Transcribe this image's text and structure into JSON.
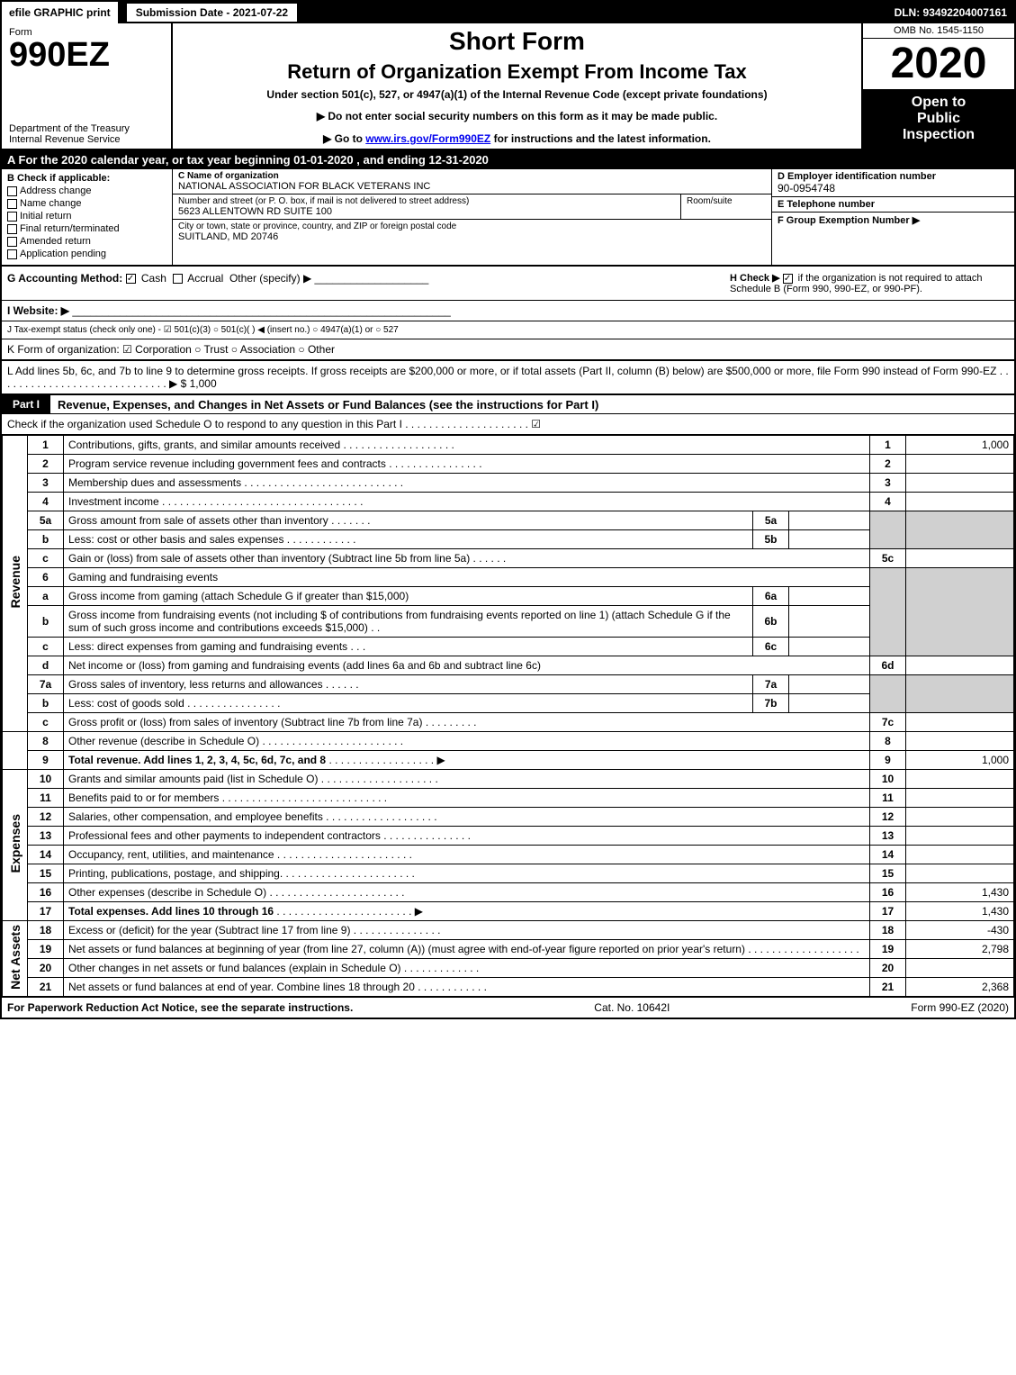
{
  "top_bar": {
    "efile": "efile GRAPHIC print",
    "submission": "Submission Date - 2021-07-22",
    "dln": "DLN: 93492204007161"
  },
  "header": {
    "form_label": "Form",
    "form_number": "990EZ",
    "dept1": "Department of the Treasury",
    "dept2": "Internal Revenue Service",
    "short_form": "Short Form",
    "return_title": "Return of Organization Exempt From Income Tax",
    "under_section": "Under section 501(c), 527, or 4947(a)(1) of the Internal Revenue Code (except private foundations)",
    "instr1": "▶ Do not enter social security numbers on this form as it may be made public.",
    "instr2_pre": "▶ Go to ",
    "instr2_link": "www.irs.gov/Form990EZ",
    "instr2_post": " for instructions and the latest information.",
    "omb": "OMB No. 1545-1150",
    "year": "2020",
    "open1": "Open to",
    "open2": "Public",
    "open3": "Inspection"
  },
  "tax_year_bar": "A   For the 2020 calendar year, or tax year beginning 01-01-2020 , and ending 12-31-2020",
  "section_b": {
    "title": "B Check if applicable:",
    "opts": [
      "Address change",
      "Name change",
      "Initial return",
      "Final return/terminated",
      "Amended return",
      "Application pending"
    ]
  },
  "org": {
    "c_label": "C Name of organization",
    "name": "NATIONAL ASSOCIATION FOR BLACK VETERANS INC",
    "addr_label": "Number and street (or P. O. box, if mail is not delivered to street address)",
    "addr": "5623 ALLENTOWN RD SUITE 100",
    "room_label": "Room/suite",
    "city_label": "City or town, state or province, country, and ZIP or foreign postal code",
    "city": "SUITLAND, MD  20746"
  },
  "right_info": {
    "d_label": "D Employer identification number",
    "ein": "90-0954748",
    "e_label": "E Telephone number",
    "phone": "",
    "f_label": "F Group Exemption Number  ▶"
  },
  "section_g": {
    "g_label": "G Accounting Method:",
    "g_cash": "Cash",
    "g_accrual": "Accrual",
    "g_other": "Other (specify) ▶",
    "h_label": "H Check ▶",
    "h_text": "if the organization is not required to attach Schedule B (Form 990, 990-EZ, or 990-PF)."
  },
  "website": "I Website: ▶",
  "tax_status": "J Tax-exempt status (check only one) - ☑ 501(c)(3)  ○ 501(c)(  ) ◀ (insert no.)  ○ 4947(a)(1) or  ○ 527",
  "k_row": "K Form of organization:  ☑ Corporation  ○ Trust  ○ Association  ○ Other",
  "l_row": "L Add lines 5b, 6c, and 7b to line 9 to determine gross receipts. If gross receipts are $200,000 or more, or if total assets (Part II, column (B) below) are $500,000 or more, file Form 990 instead of Form 990-EZ . . . . . . . . . . . . . . . . . . . . . . . . . . . . . ▶ $ 1,000",
  "part1": {
    "label": "Part I",
    "title": "Revenue, Expenses, and Changes in Net Assets or Fund Balances (see the instructions for Part I)",
    "check": "Check if the organization used Schedule O to respond to any question in this Part I . . . . . . . . . . . . . . . . . . . . . ☑"
  },
  "sections": {
    "revenue": "Revenue",
    "expenses": "Expenses",
    "netassets": "Net Assets"
  },
  "rows": {
    "1": {
      "n": "1",
      "d": "Contributions, gifts, grants, and similar amounts received",
      "rn": "1",
      "rv": "1,000"
    },
    "2": {
      "n": "2",
      "d": "Program service revenue including government fees and contracts",
      "rn": "2",
      "rv": ""
    },
    "3": {
      "n": "3",
      "d": "Membership dues and assessments",
      "rn": "3",
      "rv": ""
    },
    "4": {
      "n": "4",
      "d": "Investment income",
      "rn": "4",
      "rv": ""
    },
    "5a": {
      "n": "5a",
      "d": "Gross amount from sale of assets other than inventory",
      "mn": "5a",
      "mv": ""
    },
    "5b": {
      "n": "b",
      "d": "Less: cost or other basis and sales expenses",
      "mn": "5b",
      "mv": ""
    },
    "5c": {
      "n": "c",
      "d": "Gain or (loss) from sale of assets other than inventory (Subtract line 5b from line 5a)",
      "rn": "5c",
      "rv": ""
    },
    "6": {
      "n": "6",
      "d": "Gaming and fundraising events"
    },
    "6a": {
      "n": "a",
      "d": "Gross income from gaming (attach Schedule G if greater than $15,000)",
      "mn": "6a",
      "mv": ""
    },
    "6b": {
      "n": "b",
      "d": "Gross income from fundraising events (not including $                    of contributions from fundraising events reported on line 1) (attach Schedule G if the sum of such gross income and contributions exceeds $15,000)",
      "mn": "6b",
      "mv": ""
    },
    "6c": {
      "n": "c",
      "d": "Less: direct expenses from gaming and fundraising events",
      "mn": "6c",
      "mv": ""
    },
    "6d": {
      "n": "d",
      "d": "Net income or (loss) from gaming and fundraising events (add lines 6a and 6b and subtract line 6c)",
      "rn": "6d",
      "rv": ""
    },
    "7a": {
      "n": "7a",
      "d": "Gross sales of inventory, less returns and allowances",
      "mn": "7a",
      "mv": ""
    },
    "7b": {
      "n": "b",
      "d": "Less: cost of goods sold",
      "mn": "7b",
      "mv": ""
    },
    "7c": {
      "n": "c",
      "d": "Gross profit or (loss) from sales of inventory (Subtract line 7b from line 7a)",
      "rn": "7c",
      "rv": ""
    },
    "8": {
      "n": "8",
      "d": "Other revenue (describe in Schedule O)",
      "rn": "8",
      "rv": ""
    },
    "9": {
      "n": "9",
      "d": "Total revenue. Add lines 1, 2, 3, 4, 5c, 6d, 7c, and 8",
      "rn": "9",
      "rv": "1,000",
      "bold": true,
      "arrow": true
    },
    "10": {
      "n": "10",
      "d": "Grants and similar amounts paid (list in Schedule O)",
      "rn": "10",
      "rv": ""
    },
    "11": {
      "n": "11",
      "d": "Benefits paid to or for members",
      "rn": "11",
      "rv": ""
    },
    "12": {
      "n": "12",
      "d": "Salaries, other compensation, and employee benefits",
      "rn": "12",
      "rv": ""
    },
    "13": {
      "n": "13",
      "d": "Professional fees and other payments to independent contractors",
      "rn": "13",
      "rv": ""
    },
    "14": {
      "n": "14",
      "d": "Occupancy, rent, utilities, and maintenance",
      "rn": "14",
      "rv": ""
    },
    "15": {
      "n": "15",
      "d": "Printing, publications, postage, and shipping.",
      "rn": "15",
      "rv": ""
    },
    "16": {
      "n": "16",
      "d": "Other expenses (describe in Schedule O)",
      "rn": "16",
      "rv": "1,430"
    },
    "17": {
      "n": "17",
      "d": "Total expenses. Add lines 10 through 16",
      "rn": "17",
      "rv": "1,430",
      "bold": true,
      "arrow": true
    },
    "18": {
      "n": "18",
      "d": "Excess or (deficit) for the year (Subtract line 17 from line 9)",
      "rn": "18",
      "rv": "-430"
    },
    "19": {
      "n": "19",
      "d": "Net assets or fund balances at beginning of year (from line 27, column (A)) (must agree with end-of-year figure reported on prior year's return)",
      "rn": "19",
      "rv": "2,798"
    },
    "20": {
      "n": "20",
      "d": "Other changes in net assets or fund balances (explain in Schedule O)",
      "rn": "20",
      "rv": ""
    },
    "21": {
      "n": "21",
      "d": "Net assets or fund balances at end of year. Combine lines 18 through 20",
      "rn": "21",
      "rv": "2,368"
    }
  },
  "footer": {
    "left": "For Paperwork Reduction Act Notice, see the separate instructions.",
    "mid": "Cat. No. 10642I",
    "right": "Form 990-EZ (2020)"
  },
  "colors": {
    "black": "#000000",
    "white": "#ffffff",
    "shaded": "#d0d0d0",
    "link": "#0000ee"
  }
}
